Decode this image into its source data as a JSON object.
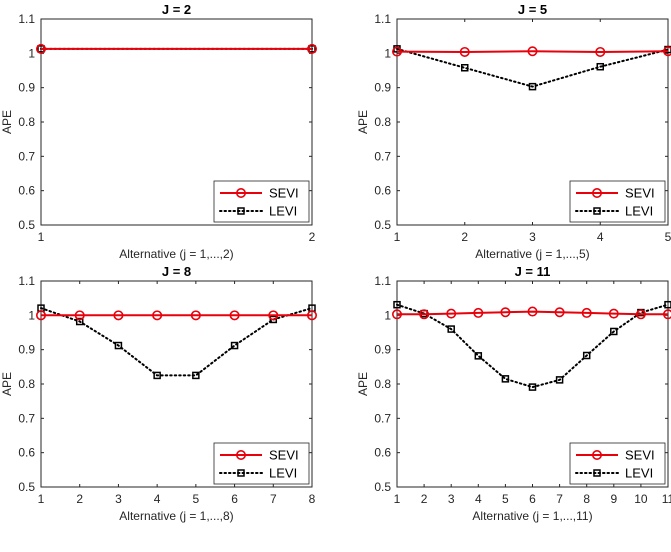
{
  "chart_data": [
    {
      "type": "line",
      "title": "J = 2",
      "xlabel": "Alternative (j = 1,...,2)",
      "ylabel": "APE",
      "x": [
        1,
        2
      ],
      "xlim": [
        1,
        2
      ],
      "ylim": [
        0.5,
        1.1
      ],
      "yticks": [
        "0.5",
        "0.6",
        "0.7",
        "0.8",
        "0.9",
        "1",
        "1.1"
      ],
      "legend_position": "bottom-right",
      "series": [
        {
          "name": "SEVI",
          "color": "#e8000b",
          "style": "solid",
          "marker": "circle",
          "values": [
            1.013,
            1.013
          ]
        },
        {
          "name": "LEVI",
          "color": "#000000",
          "style": "dotted",
          "marker": "square",
          "values": [
            1.013,
            1.013
          ]
        }
      ]
    },
    {
      "type": "line",
      "title": "J = 5",
      "xlabel": "Alternative (j = 1,...,5)",
      "ylabel": "APE",
      "x": [
        1,
        2,
        3,
        4,
        5
      ],
      "xlim": [
        1,
        5
      ],
      "ylim": [
        0.5,
        1.1
      ],
      "yticks": [
        "0.5",
        "0.6",
        "0.7",
        "0.8",
        "0.9",
        "1",
        "1.1"
      ],
      "legend_position": "bottom-right",
      "series": [
        {
          "name": "SEVI",
          "color": "#e8000b",
          "style": "solid",
          "marker": "circle",
          "values": [
            1.005,
            1.004,
            1.006,
            1.004,
            1.006
          ]
        },
        {
          "name": "LEVI",
          "color": "#000000",
          "style": "dotted",
          "marker": "square",
          "values": [
            1.013,
            0.958,
            0.903,
            0.961,
            1.011
          ]
        }
      ]
    },
    {
      "type": "line",
      "title": "J = 8",
      "xlabel": "Alternative (j = 1,...,8)",
      "ylabel": "APE",
      "x": [
        1,
        2,
        3,
        4,
        5,
        6,
        7,
        8
      ],
      "xlim": [
        1,
        8
      ],
      "ylim": [
        0.5,
        1.1
      ],
      "yticks": [
        "0.5",
        "0.6",
        "0.7",
        "0.8",
        "0.9",
        "1",
        "1.1"
      ],
      "legend_position": "bottom-right",
      "series": [
        {
          "name": "SEVI",
          "color": "#e8000b",
          "style": "solid",
          "marker": "circle",
          "values": [
            1.0,
            1.0,
            1.0,
            1.0,
            1.0,
            1.0,
            1.0,
            1.0
          ]
        },
        {
          "name": "LEVI",
          "color": "#000000",
          "style": "dotted",
          "marker": "square",
          "values": [
            1.021,
            0.982,
            0.912,
            0.825,
            0.825,
            0.912,
            0.988,
            1.021
          ]
        }
      ]
    },
    {
      "type": "line",
      "title": "J = 11",
      "xlabel": "Alternative (j = 1,...,11)",
      "ylabel": "APE",
      "x": [
        1,
        2,
        3,
        4,
        5,
        6,
        7,
        8,
        9,
        10,
        11
      ],
      "xlim": [
        1,
        11
      ],
      "ylim": [
        0.5,
        1.1
      ],
      "yticks": [
        "0.5",
        "0.6",
        "0.7",
        "0.8",
        "0.9",
        "1",
        "1.1"
      ],
      "legend_position": "bottom-right",
      "series": [
        {
          "name": "SEVI",
          "color": "#e8000b",
          "style": "solid",
          "marker": "circle",
          "values": [
            1.003,
            1.003,
            1.005,
            1.007,
            1.009,
            1.011,
            1.009,
            1.007,
            1.005,
            1.003,
            1.003
          ]
        },
        {
          "name": "LEVI",
          "color": "#000000",
          "style": "dotted",
          "marker": "square",
          "values": [
            1.031,
            1.005,
            0.96,
            0.882,
            0.815,
            0.791,
            0.812,
            0.883,
            0.953,
            1.008,
            1.031
          ]
        }
      ]
    }
  ]
}
